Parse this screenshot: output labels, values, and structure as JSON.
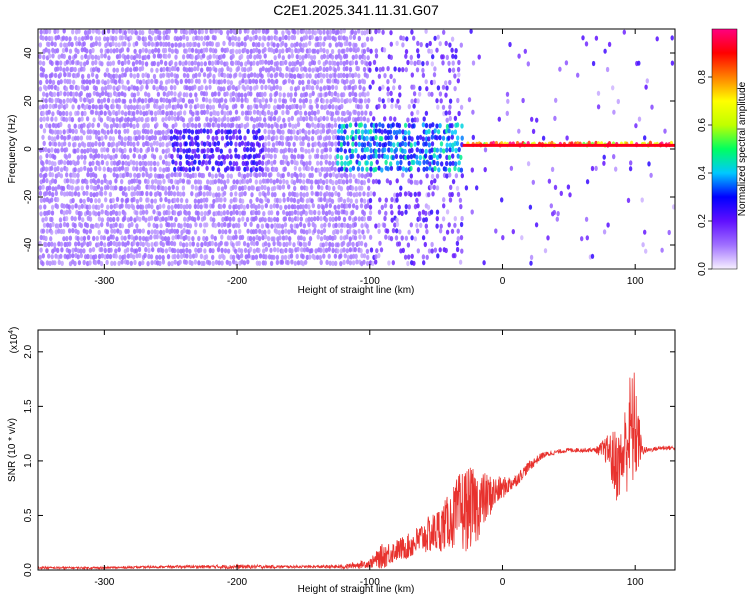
{
  "title": "C2E1.2025.341.11.31.G07",
  "chart_data": [
    {
      "type": "heatmap",
      "name": "spectrogram",
      "xlabel": "Height of straight line (km)",
      "ylabel": "Frequency (Hz)",
      "xlim": [
        -350,
        130
      ],
      "ylim": [
        -50,
        50
      ],
      "xticks": [
        -300,
        -200,
        -100,
        0,
        100
      ],
      "yticks": [
        -40,
        -20,
        0,
        20,
        40
      ],
      "colorbar": {
        "label": "Normalized spectral amplitude",
        "range": [
          0.0,
          1.0
        ],
        "ticks": [
          "0.0",
          "0.2",
          "0.4",
          "0.6",
          "0.8"
        ],
        "tick_values": [
          0.0,
          0.2,
          0.4,
          0.6,
          0.8
        ],
        "colors": [
          "#f7f0ff",
          "#a070ff",
          "#6010ff",
          "#0000ff",
          "#00c8ff",
          "#00ff60",
          "#c0ff00",
          "#ffff00",
          "#ff8000",
          "#ff0000",
          "#ff0080"
        ]
      },
      "regions": [
        {
          "x": [
            -350,
            -100
          ],
          "y": [
            -50,
            50
          ],
          "level": 0.1,
          "desc": "broadband noise"
        },
        {
          "x": [
            -250,
            -180
          ],
          "y": [
            -10,
            8
          ],
          "level": 0.25,
          "desc": "noise cluster"
        },
        {
          "x": [
            -125,
            -30
          ],
          "y": [
            -10,
            10
          ],
          "level": 0.4,
          "desc": "signal onset"
        },
        {
          "x": [
            -30,
            130
          ],
          "y": [
            0,
            4
          ],
          "level": 0.9,
          "desc": "stable carrier"
        }
      ]
    },
    {
      "type": "line",
      "name": "snr",
      "xlabel": "Height of straight line (km)",
      "ylabel": "SNR (10 * v/v)",
      "y_multiplier": "(x10",
      "y_multiplier_exp": "4",
      "y_multiplier_close": ")",
      "xlim": [
        -350,
        130
      ],
      "ylim": [
        0,
        2.2
      ],
      "xticks": [
        -300,
        -200,
        -100,
        0,
        100
      ],
      "yticks": [
        "0.0",
        "0.5",
        "1.0",
        "1.5",
        "2.0"
      ],
      "ytick_values": [
        0.0,
        0.5,
        1.0,
        1.5,
        2.0
      ],
      "color": "#e8322e",
      "series": [
        {
          "name": "SNR",
          "x": [
            -350,
            -300,
            -250,
            -200,
            -150,
            -120,
            -100,
            -90,
            -80,
            -70,
            -60,
            -50,
            -40,
            -30,
            -20,
            -10,
            0,
            10,
            20,
            30,
            40,
            50,
            60,
            70,
            80,
            85,
            90,
            95,
            100,
            105,
            110,
            120,
            130
          ],
          "values": [
            0.02,
            0.02,
            0.03,
            0.03,
            0.03,
            0.03,
            0.06,
            0.13,
            0.18,
            0.22,
            0.3,
            0.35,
            0.45,
            0.55,
            0.58,
            0.68,
            0.75,
            0.82,
            0.95,
            1.05,
            1.08,
            1.1,
            1.1,
            1.1,
            1.1,
            0.95,
            1.0,
            1.25,
            1.3,
            1.1,
            1.1,
            1.12,
            1.12
          ],
          "noise": [
            0.01,
            0.01,
            0.01,
            0.02,
            0.01,
            0.02,
            0.04,
            0.12,
            0.1,
            0.12,
            0.15,
            0.2,
            0.25,
            0.4,
            0.35,
            0.2,
            0.1,
            0.06,
            0.05,
            0.03,
            0.02,
            0.02,
            0.02,
            0.02,
            0.15,
            0.35,
            0.3,
            0.55,
            0.55,
            0.05,
            0.02,
            0.02,
            0.02
          ]
        }
      ]
    }
  ]
}
